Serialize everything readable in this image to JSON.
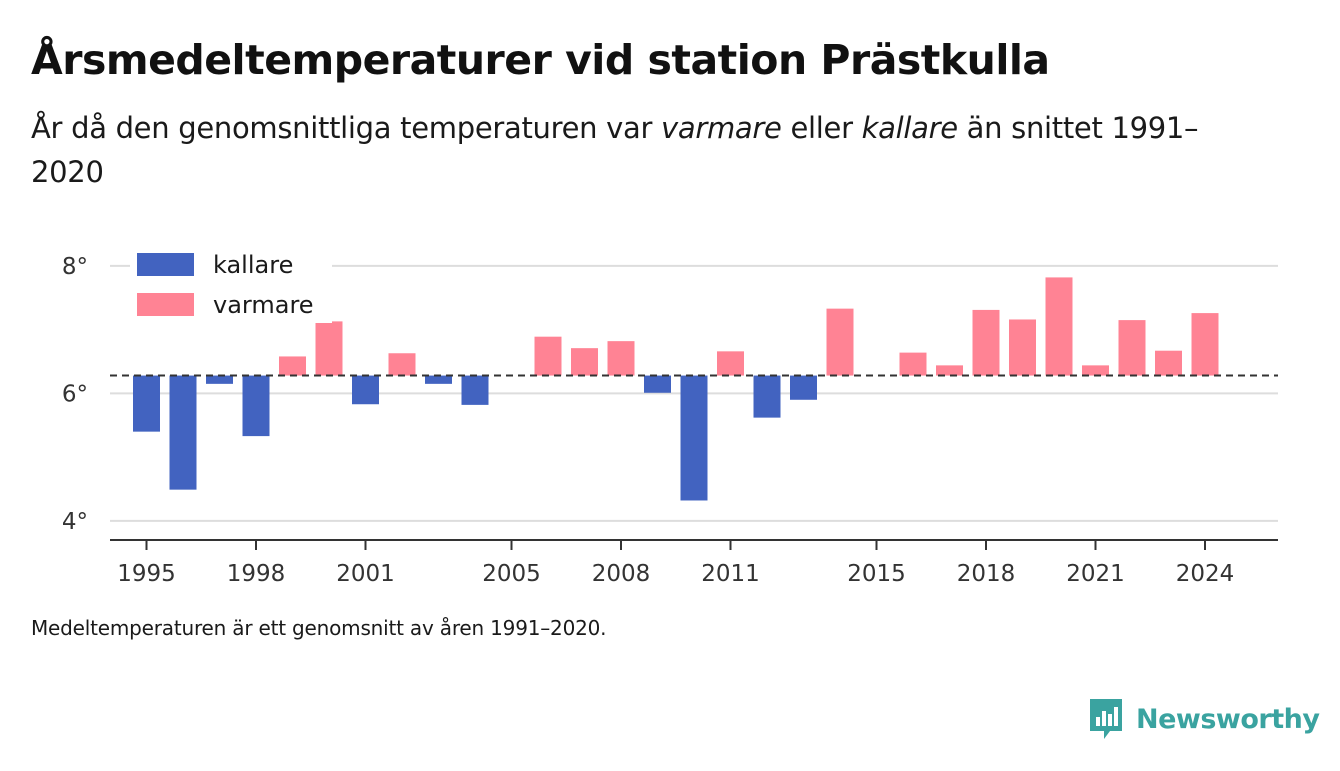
{
  "title": "Årsmedeltemperaturer vid station Prästkulla",
  "subtitle": {
    "part1": "År då den genomsnittliga temperaturen var ",
    "warm_word": "varmare",
    "part2": " eller ",
    "cold_word": "kallare",
    "part3": " än snittet 1991–2020"
  },
  "footnote": "Medeltemperaturen är ett genomsnitt av åren 1991–2020.",
  "brand": "Newsworthy",
  "brand_icon": "newsworthy-logo-icon",
  "colors": {
    "kallare": "#4263c0",
    "varmare": "#ff8394",
    "grid": "#dddddd",
    "axis": "#333333",
    "baseline": "#333333",
    "brand": "#3aa3a0"
  },
  "chart_data": {
    "type": "bar",
    "legend": [
      {
        "key": "kallare",
        "label": "kallare"
      },
      {
        "key": "varmare",
        "label": "varmare"
      }
    ],
    "legend_position": "top-left",
    "baseline": 6.28,
    "baseline_style": "dashed",
    "ylim": [
      3.7,
      8.25
    ],
    "yticks": [
      4,
      6,
      8
    ],
    "ytick_labels": [
      "4°",
      "6°",
      "8°"
    ],
    "xlim": [
      1994.0,
      2026.0
    ],
    "xticks": [
      1995,
      1998,
      2001,
      2005,
      2008,
      2011,
      2015,
      2018,
      2021,
      2024
    ],
    "grid": true,
    "x": [
      1995,
      1996,
      1997,
      1998,
      1999,
      2000,
      2001,
      2002,
      2003,
      2004,
      2005,
      2006,
      2007,
      2008,
      2009,
      2010,
      2011,
      2012,
      2013,
      2014,
      2015,
      2016,
      2017,
      2018,
      2019,
      2020,
      2021,
      2022,
      2023,
      2024
    ],
    "values": [
      5.4,
      4.49,
      6.15,
      5.33,
      6.58,
      7.13,
      5.83,
      6.63,
      6.15,
      5.82,
      null,
      6.89,
      6.71,
      6.82,
      6.01,
      4.32,
      6.66,
      5.62,
      5.9,
      7.33,
      null,
      6.64,
      6.44,
      7.31,
      7.16,
      7.82,
      6.44,
      7.15,
      6.67,
      7.26
    ]
  }
}
